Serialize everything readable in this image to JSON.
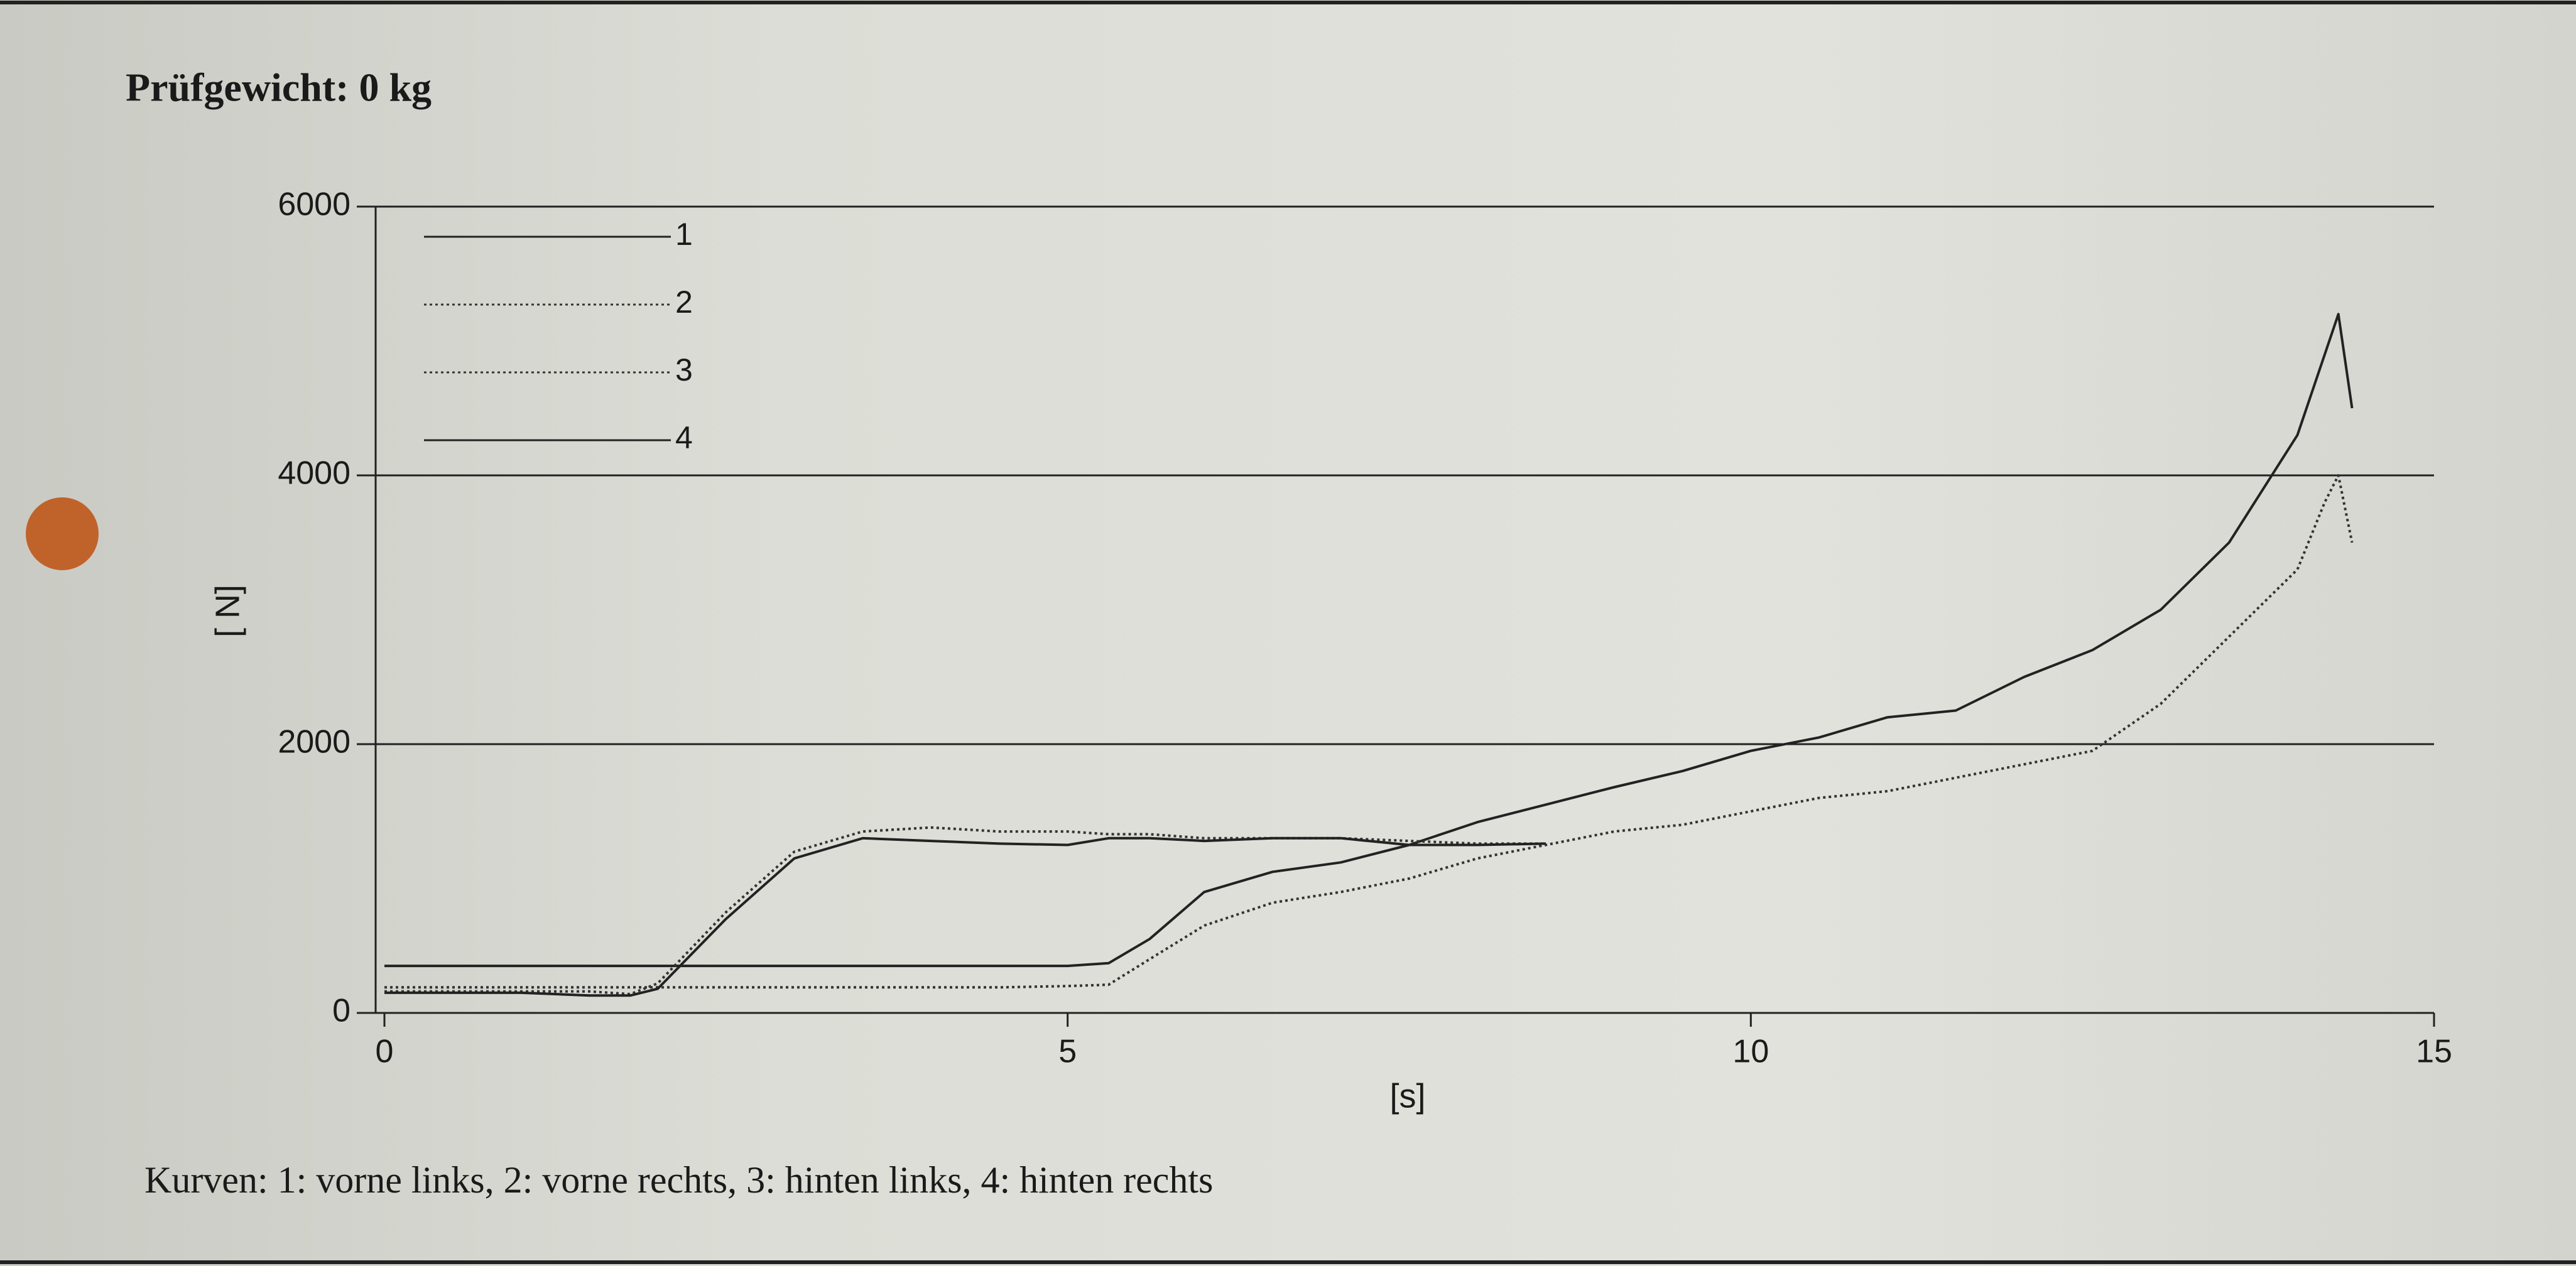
{
  "chart_data": {
    "type": "line",
    "title": "Prüfgewicht: 0 kg",
    "x_label": "[s]",
    "y_label": "[ N]",
    "footnote": "Kurven: 1: vorne links, 2: vorne rechts, 3: hinten links, 4: hinten rechts",
    "x": [
      0,
      0.5,
      1,
      1.5,
      1.8,
      2,
      2.5,
      3,
      3.5,
      4,
      4.5,
      5,
      5.3,
      5.6,
      6,
      6.5,
      7,
      7.5,
      8,
      8.5,
      9,
      9.5,
      10,
      10.5,
      11,
      11.5,
      12,
      12.5,
      13,
      13.5,
      14,
      14.2,
      14.3,
      14.4
    ],
    "series": [
      {
        "name": "1",
        "color": "#222222",
        "dash": "solid",
        "values": [
          350,
          350,
          350,
          350,
          350,
          350,
          350,
          350,
          350,
          350,
          350,
          350,
          370,
          550,
          900,
          1050,
          1120,
          1250,
          1420,
          1550,
          1680,
          1800,
          1950,
          2050,
          2200,
          2250,
          2500,
          2700,
          3000,
          3500,
          4300,
          4900,
          5200,
          4500
        ]
      },
      {
        "name": "2",
        "color": "#333333",
        "dash": "dotted",
        "values": [
          190,
          190,
          190,
          190,
          190,
          190,
          190,
          190,
          190,
          190,
          190,
          200,
          210,
          400,
          650,
          820,
          900,
          1000,
          1150,
          1250,
          1350,
          1400,
          1500,
          1600,
          1650,
          1750,
          1850,
          1950,
          2300,
          2800,
          3300,
          3800,
          4000,
          3500
        ]
      },
      {
        "name": "3",
        "color": "#333333",
        "dash": "dotted",
        "values": [
          160,
          160,
          160,
          160,
          140,
          220,
          750,
          1200,
          1350,
          1380,
          1350,
          1350,
          1330,
          1330,
          1300,
          1300,
          1300,
          1280,
          1260,
          1260,
          null,
          null,
          null,
          null,
          null,
          null,
          null,
          null,
          null,
          null,
          null,
          null,
          null,
          null
        ]
      },
      {
        "name": "4",
        "color": "#222222",
        "dash": "solid",
        "values": [
          150,
          150,
          150,
          130,
          130,
          180,
          700,
          1150,
          1300,
          1280,
          1260,
          1250,
          1300,
          1300,
          1280,
          1300,
          1300,
          1250,
          1250,
          1260,
          null,
          null,
          null,
          null,
          null,
          null,
          null,
          null,
          null,
          null,
          null,
          null,
          null,
          null
        ]
      }
    ],
    "xlim": [
      0,
      15
    ],
    "xticks": [
      0,
      5,
      10,
      15
    ],
    "ylim": [
      0,
      6000
    ],
    "yticks": [
      0,
      2000,
      4000,
      6000
    ],
    "grid": true
  }
}
